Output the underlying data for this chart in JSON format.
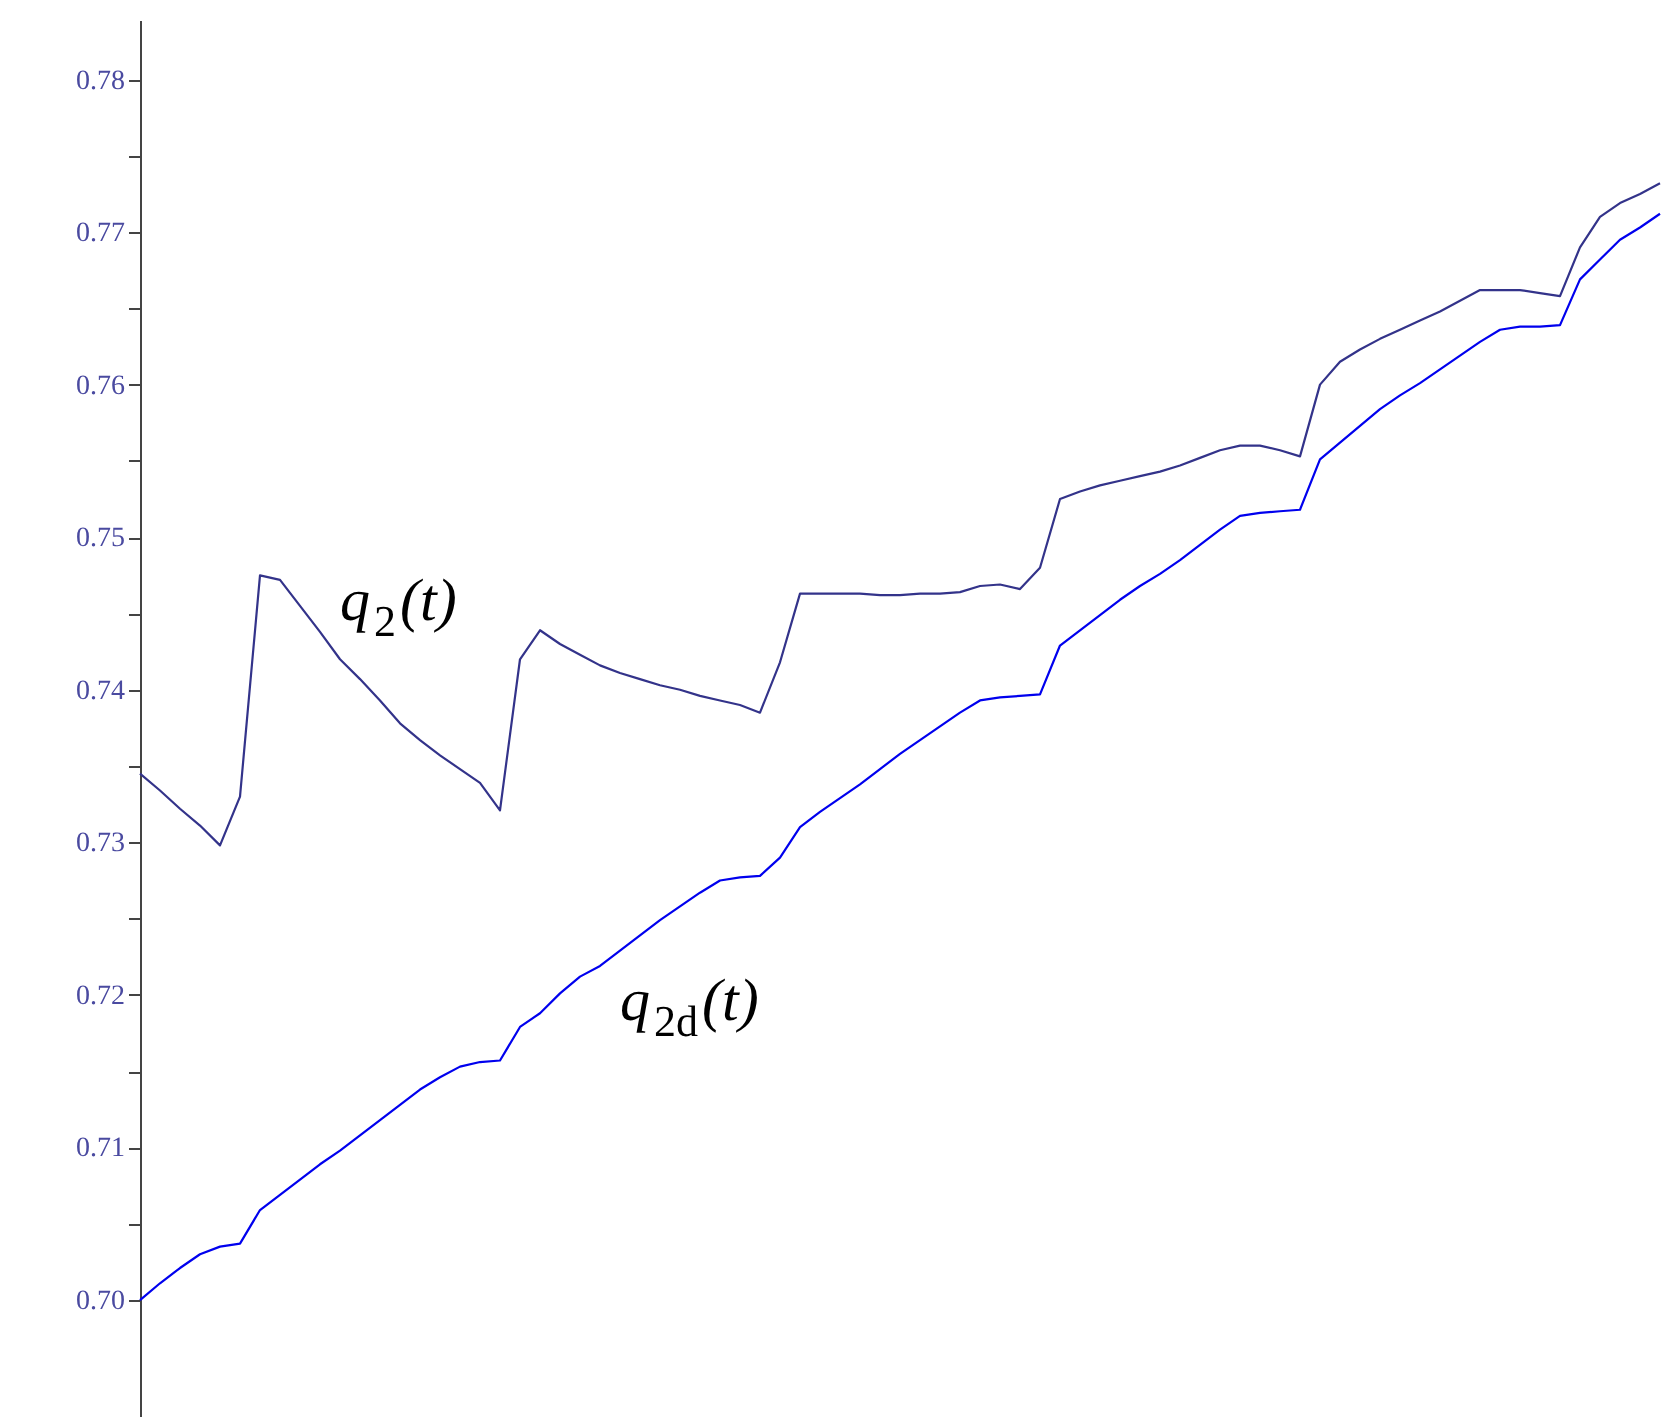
{
  "chart_data": {
    "type": "line",
    "categories": [
      null,
      null,
      null,
      null,
      null,
      null,
      null,
      null,
      null,
      null,
      null,
      null,
      null,
      null,
      null,
      null,
      null,
      null,
      null,
      null,
      null,
      null,
      null,
      null,
      null,
      null,
      null,
      null,
      null,
      null,
      null,
      null,
      null,
      null,
      null,
      null,
      null,
      null,
      null,
      null,
      null,
      null,
      null,
      null,
      null,
      null,
      null,
      null,
      null,
      null,
      null,
      null,
      null,
      null,
      null,
      null,
      null,
      null,
      null,
      null,
      null,
      null,
      null,
      null,
      null,
      null,
      null,
      null,
      null,
      null,
      null,
      null,
      null,
      null,
      null,
      null,
      null
    ],
    "series": [
      {
        "name": "q$_{2}$(t)",
        "color": "#33338a",
        "values": [
          0.7345,
          0.7334,
          0.7322,
          0.7311,
          0.7298,
          0.733,
          0.7475,
          0.7472,
          0.7455,
          0.7438,
          0.742,
          0.7407,
          0.7393,
          0.7378,
          0.7367,
          0.7357,
          0.7348,
          0.7339,
          0.7321,
          0.742,
          0.7439,
          0.743,
          0.7423,
          0.7416,
          0.7411,
          0.7407,
          0.7403,
          0.74,
          0.7396,
          0.7393,
          0.739,
          0.7385,
          0.7418,
          0.7463,
          0.7463,
          0.7463,
          0.7463,
          0.7462,
          0.7462,
          0.7463,
          0.7463,
          0.7464,
          0.7468,
          0.7469,
          0.7466,
          0.748,
          0.7525,
          0.753,
          0.7534,
          0.7537,
          0.754,
          0.7543,
          0.7547,
          0.7552,
          0.7557,
          0.756,
          0.756,
          0.7557,
          0.7553,
          0.76,
          0.7615,
          0.7623,
          0.763,
          0.7636,
          0.7642,
          0.7648,
          0.7655,
          0.7662,
          0.7662,
          0.7662,
          0.766,
          0.7658,
          0.769,
          0.771,
          0.7719,
          0.7725,
          0.7732
        ]
      },
      {
        "name": "q$_{2d}$(t)",
        "color": "#0000ee",
        "values": [
          0.7,
          0.7011,
          0.7021,
          0.703,
          0.7035,
          0.7037,
          0.7059,
          0.7069,
          0.7079,
          0.7089,
          0.7098,
          0.7108,
          0.7118,
          0.7128,
          0.7138,
          0.7146,
          0.7153,
          0.7156,
          0.7157,
          0.7179,
          0.7188,
          0.7201,
          0.7212,
          0.7219,
          0.7229,
          0.7239,
          0.7249,
          0.7258,
          0.7267,
          0.7275,
          0.7277,
          0.7278,
          0.729,
          0.731,
          0.732,
          0.7329,
          0.7338,
          0.7348,
          0.7358,
          0.7367,
          0.7376,
          0.7385,
          0.7393,
          0.7395,
          0.7396,
          0.7397,
          0.7429,
          0.7439,
          0.7449,
          0.7459,
          0.7468,
          0.7476,
          0.7485,
          0.7495,
          0.7505,
          0.7514,
          0.7516,
          0.7517,
          0.7518,
          0.7551,
          0.7562,
          0.7573,
          0.7584,
          0.7593,
          0.7601,
          0.761,
          0.7619,
          0.7628,
          0.7636,
          0.7638,
          0.7638,
          0.7639,
          0.7669,
          0.7682,
          0.7695,
          0.7703,
          0.7712
        ]
      }
    ],
    "ylim": [
      0.6924,
      0.7839
    ],
    "yticks": [
      {
        "value": 0.7,
        "label": "0.70"
      },
      {
        "value": 0.705,
        "label": null
      },
      0.71,
      {
        "value": 0.715,
        "label": null
      },
      0.72,
      {
        "value": 0.725,
        "label": null
      },
      0.73,
      {
        "value": 0.735,
        "label": null
      },
      0.74,
      {
        "value": 0.745,
        "label": null
      },
      0.75,
      {
        "value": 0.755,
        "label": null
      },
      0.76,
      {
        "value": 0.765,
        "label": null
      },
      0.77,
      {
        "value": 0.775,
        "label": null
      },
      0.78
    ],
    "tick_labels": "y",
    "marker": "none",
    "line_style": "solid"
  }
}
